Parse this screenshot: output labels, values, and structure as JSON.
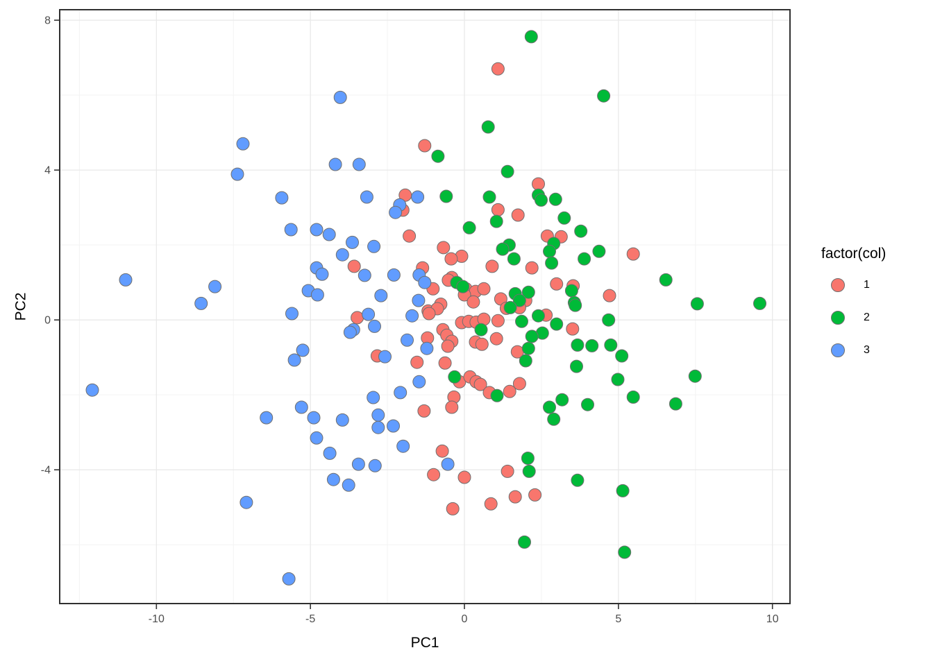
{
  "chart_data": {
    "type": "scatter",
    "title": "",
    "xlabel": "PC1",
    "ylabel": "PC2",
    "xlim": [
      -13.14,
      10.57
    ],
    "ylim": [
      -7.57,
      8.28
    ],
    "x_ticks": [
      -10,
      -5,
      0,
      5,
      10
    ],
    "y_ticks": [
      -4,
      0,
      4,
      8
    ],
    "x_minor_ticks": [
      -12.5,
      -7.5,
      -2.5,
      2.5,
      7.5
    ],
    "y_minor_ticks": [
      -6,
      -2,
      2,
      6
    ],
    "grid": true,
    "panel": {
      "border_color": "#303030",
      "major_grid_color": "#e9e9e9",
      "minor_grid_color": "#f3f3f3",
      "background": "#ffffff"
    },
    "tick_label_color": "#4d4d4d",
    "point_style": {
      "radius": 9,
      "stroke": "#6f6f6f"
    },
    "legend": {
      "title": "factor(col)",
      "position": "right"
    },
    "series": [
      {
        "name": "1",
        "color": "#F8766D",
        "points": [
          [
            1.09,
            6.7
          ],
          [
            -1.29,
            4.65
          ],
          [
            2.4,
            3.63
          ],
          [
            -1.92,
            3.33
          ],
          [
            -2.0,
            2.93
          ],
          [
            1.09,
            2.94
          ],
          [
            1.74,
            2.8
          ],
          [
            -1.79,
            2.24
          ],
          [
            3.14,
            2.22
          ],
          [
            2.69,
            2.24
          ],
          [
            -0.68,
            1.93
          ],
          [
            -0.09,
            1.7
          ],
          [
            -0.43,
            1.63
          ],
          [
            5.48,
            1.76
          ],
          [
            0.9,
            1.43
          ],
          [
            -3.58,
            1.43
          ],
          [
            2.19,
            1.39
          ],
          [
            -1.36,
            1.39
          ],
          [
            2.99,
            0.96
          ],
          [
            3.53,
            0.91
          ],
          [
            -0.41,
            1.13
          ],
          [
            -0.52,
            1.06
          ],
          [
            -1.02,
            0.83
          ],
          [
            0.05,
            0.83
          ],
          [
            0.36,
            0.76
          ],
          [
            0.63,
            0.83
          ],
          [
            1.18,
            0.56
          ],
          [
            1.99,
            0.52
          ],
          [
            4.71,
            0.65
          ],
          [
            0.0,
            0.67
          ],
          [
            0.29,
            0.48
          ],
          [
            -0.77,
            0.42
          ],
          [
            -1.18,
            0.24
          ],
          [
            -0.88,
            0.3
          ],
          [
            -3.48,
            0.06
          ],
          [
            -1.15,
            0.17
          ],
          [
            1.36,
            0.31
          ],
          [
            1.79,
            0.33
          ],
          [
            2.65,
            0.13
          ],
          [
            -0.09,
            -0.07
          ],
          [
            0.14,
            -0.04
          ],
          [
            0.38,
            -0.06
          ],
          [
            0.63,
            0.02
          ],
          [
            1.09,
            -0.02
          ],
          [
            3.51,
            -0.24
          ],
          [
            -0.7,
            -0.26
          ],
          [
            -0.57,
            -0.41
          ],
          [
            -1.2,
            -0.48
          ],
          [
            -0.41,
            -0.57
          ],
          [
            -0.54,
            -0.7
          ],
          [
            0.36,
            -0.59
          ],
          [
            0.57,
            -0.65
          ],
          [
            1.04,
            -0.5
          ],
          [
            1.72,
            -0.85
          ],
          [
            -2.83,
            -0.96
          ],
          [
            -1.54,
            -1.13
          ],
          [
            -0.63,
            -1.15
          ],
          [
            -0.16,
            -1.65
          ],
          [
            0.18,
            -1.52
          ],
          [
            0.38,
            -1.65
          ],
          [
            0.52,
            -1.72
          ],
          [
            0.81,
            -1.94
          ],
          [
            1.47,
            -1.91
          ],
          [
            1.79,
            -1.7
          ],
          [
            -0.34,
            -2.06
          ],
          [
            -0.41,
            -2.33
          ],
          [
            -1.31,
            -2.43
          ],
          [
            -0.72,
            -3.5
          ],
          [
            -1.0,
            -4.13
          ],
          [
            0.0,
            -4.2
          ],
          [
            1.4,
            -4.04
          ],
          [
            -0.38,
            -5.04
          ],
          [
            0.86,
            -4.91
          ],
          [
            1.65,
            -4.72
          ],
          [
            2.29,
            -4.67
          ]
        ]
      },
      {
        "name": "2",
        "color": "#00BA38",
        "points": [
          [
            2.17,
            7.56
          ],
          [
            4.52,
            5.98
          ],
          [
            0.77,
            5.15
          ],
          [
            -0.86,
            4.37
          ],
          [
            1.4,
            3.96
          ],
          [
            -0.59,
            3.3
          ],
          [
            0.81,
            3.28
          ],
          [
            2.4,
            3.33
          ],
          [
            2.49,
            3.2
          ],
          [
            2.96,
            3.22
          ],
          [
            1.04,
            2.63
          ],
          [
            3.24,
            2.72
          ],
          [
            3.78,
            2.37
          ],
          [
            2.9,
            2.04
          ],
          [
            0.16,
            2.46
          ],
          [
            1.45,
            2.0
          ],
          [
            1.24,
            1.89
          ],
          [
            1.61,
            1.63
          ],
          [
            2.76,
            1.83
          ],
          [
            2.83,
            1.52
          ],
          [
            3.89,
            1.63
          ],
          [
            4.37,
            1.83
          ],
          [
            6.54,
            1.07
          ],
          [
            3.48,
            0.78
          ],
          [
            3.57,
            0.46
          ],
          [
            7.56,
            0.43
          ],
          [
            9.59,
            0.44
          ],
          [
            -0.25,
            1.0
          ],
          [
            -0.05,
            0.89
          ],
          [
            1.65,
            0.7
          ],
          [
            2.08,
            0.74
          ],
          [
            1.79,
            0.52
          ],
          [
            3.6,
            0.39
          ],
          [
            0.54,
            -0.26
          ],
          [
            1.49,
            0.33
          ],
          [
            1.86,
            -0.04
          ],
          [
            2.4,
            0.11
          ],
          [
            2.53,
            -0.35
          ],
          [
            2.19,
            -0.44
          ],
          [
            2.99,
            -0.11
          ],
          [
            4.68,
            0.0
          ],
          [
            2.08,
            -0.76
          ],
          [
            1.99,
            -1.09
          ],
          [
            3.67,
            -0.67
          ],
          [
            4.14,
            -0.69
          ],
          [
            4.75,
            -0.67
          ],
          [
            5.11,
            -0.96
          ],
          [
            3.64,
            -1.24
          ],
          [
            -0.32,
            -1.52
          ],
          [
            1.06,
            -2.02
          ],
          [
            4.98,
            -1.59
          ],
          [
            7.49,
            -1.5
          ],
          [
            5.48,
            -2.06
          ],
          [
            6.86,
            -2.24
          ],
          [
            3.17,
            -2.13
          ],
          [
            4.0,
            -2.26
          ],
          [
            2.76,
            -2.33
          ],
          [
            2.9,
            -2.65
          ],
          [
            2.06,
            -3.69
          ],
          [
            2.1,
            -4.04
          ],
          [
            3.67,
            -4.28
          ],
          [
            5.14,
            -4.56
          ],
          [
            1.95,
            -5.93
          ],
          [
            5.2,
            -6.2
          ]
        ]
      },
      {
        "name": "3",
        "color": "#619CFF",
        "points": [
          [
            -7.19,
            4.7
          ],
          [
            -4.03,
            5.94
          ],
          [
            -7.37,
            3.89
          ],
          [
            -5.93,
            3.26
          ],
          [
            -4.19,
            4.15
          ],
          [
            -3.42,
            4.15
          ],
          [
            -3.17,
            3.28
          ],
          [
            -1.52,
            3.28
          ],
          [
            -2.1,
            3.07
          ],
          [
            -2.24,
            2.87
          ],
          [
            -5.63,
            2.41
          ],
          [
            -4.8,
            2.41
          ],
          [
            -4.39,
            2.28
          ],
          [
            -3.64,
            2.07
          ],
          [
            -2.94,
            1.96
          ],
          [
            -3.96,
            1.74
          ],
          [
            -4.8,
            1.39
          ],
          [
            -4.62,
            1.22
          ],
          [
            -3.24,
            1.19
          ],
          [
            -1.47,
            1.2
          ],
          [
            -2.29,
            1.2
          ],
          [
            -1.29,
            1.0
          ],
          [
            -11.0,
            1.07
          ],
          [
            -8.1,
            0.89
          ],
          [
            -5.07,
            0.78
          ],
          [
            -4.77,
            0.67
          ],
          [
            -2.71,
            0.65
          ],
          [
            -8.55,
            0.44
          ],
          [
            -1.49,
            0.52
          ],
          [
            -5.6,
            0.17
          ],
          [
            -3.12,
            0.15
          ],
          [
            -1.7,
            0.11
          ],
          [
            -2.92,
            -0.17
          ],
          [
            -3.6,
            -0.26
          ],
          [
            -3.71,
            -0.33
          ],
          [
            -1.86,
            -0.54
          ],
          [
            -5.25,
            -0.81
          ],
          [
            -1.22,
            -0.76
          ],
          [
            -2.58,
            -0.98
          ],
          [
            -5.52,
            -1.07
          ],
          [
            -12.08,
            -1.87
          ],
          [
            -1.47,
            -1.65
          ],
          [
            -2.08,
            -1.94
          ],
          [
            -2.96,
            -2.07
          ],
          [
            -5.29,
            -2.33
          ],
          [
            -6.43,
            -2.61
          ],
          [
            -4.89,
            -2.61
          ],
          [
            -3.96,
            -2.67
          ],
          [
            -2.8,
            -2.54
          ],
          [
            -2.8,
            -2.87
          ],
          [
            -2.31,
            -2.83
          ],
          [
            -4.8,
            -3.15
          ],
          [
            -4.37,
            -3.56
          ],
          [
            -1.99,
            -3.37
          ],
          [
            -0.54,
            -3.85
          ],
          [
            -3.44,
            -3.85
          ],
          [
            -2.9,
            -3.89
          ],
          [
            -4.25,
            -4.26
          ],
          [
            -3.76,
            -4.41
          ],
          [
            -7.08,
            -4.87
          ],
          [
            -5.7,
            -6.91
          ]
        ]
      }
    ]
  }
}
